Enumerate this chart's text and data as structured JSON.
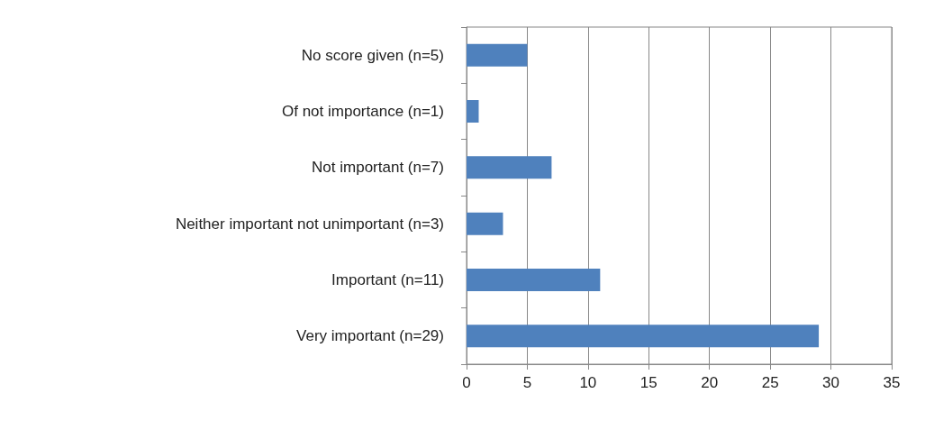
{
  "chart_data": {
    "type": "bar",
    "orientation": "horizontal",
    "categories": [
      "No score given (n=5)",
      "Of not importance (n=1)",
      "Not important (n=7)",
      "Neither important not unimportant (n=3)",
      "Important (n=11)",
      "Very important (n=29)"
    ],
    "values": [
      5,
      1,
      7,
      3,
      11,
      29
    ],
    "color": "#4f81bd",
    "xlim": [
      0,
      35
    ],
    "xticks": [
      0,
      5,
      10,
      15,
      20,
      25,
      30,
      35
    ],
    "grid": "x"
  }
}
